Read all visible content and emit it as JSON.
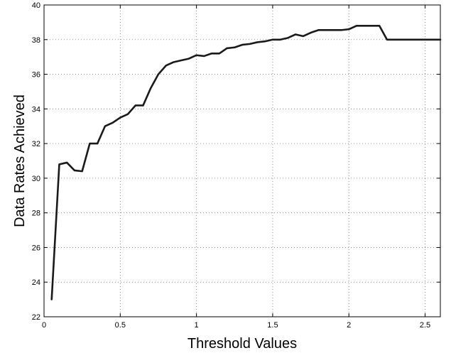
{
  "chart_data": {
    "type": "line",
    "xlabel": "Threshold Values",
    "ylabel": "Data Rates Achieved",
    "xlim": [
      0,
      2.6
    ],
    "ylim": [
      22,
      40
    ],
    "xticks": [
      0,
      0.5,
      1,
      1.5,
      2,
      2.5
    ],
    "xtick_labels": [
      "0",
      "0.5",
      "1",
      "1.5",
      "2",
      "2.5"
    ],
    "yticks": [
      22,
      24,
      26,
      28,
      30,
      32,
      34,
      36,
      38,
      40
    ],
    "ytick_labels": [
      "22",
      "24",
      "26",
      "28",
      "30",
      "32",
      "34",
      "36",
      "38",
      "40"
    ],
    "grid": true,
    "line_color": "#1a1a1a",
    "series": [
      {
        "x": [
          0.05,
          0.1,
          0.15,
          0.2,
          0.25,
          0.3,
          0.35,
          0.4,
          0.45,
          0.5,
          0.55,
          0.6,
          0.65,
          0.7,
          0.75,
          0.8,
          0.85,
          0.9,
          0.95,
          1.0,
          1.05,
          1.1,
          1.15,
          1.2,
          1.25,
          1.3,
          1.35,
          1.4,
          1.45,
          1.5,
          1.55,
          1.6,
          1.65,
          1.7,
          1.75,
          1.8,
          1.85,
          1.9,
          1.95,
          2.0,
          2.05,
          2.1,
          2.15,
          2.2,
          2.25,
          2.3,
          2.35,
          2.4,
          2.45,
          2.5,
          2.55,
          2.6
        ],
        "y": [
          23.0,
          30.8,
          30.9,
          30.45,
          30.4,
          32.0,
          32.0,
          33.0,
          33.2,
          33.5,
          33.7,
          34.2,
          34.2,
          35.2,
          36.0,
          36.5,
          36.7,
          36.8,
          36.9,
          37.1,
          37.05,
          37.2,
          37.2,
          37.5,
          37.55,
          37.7,
          37.75,
          37.85,
          37.9,
          38.0,
          38.0,
          38.1,
          38.3,
          38.2,
          38.4,
          38.55,
          38.55,
          38.55,
          38.55,
          38.6,
          38.8,
          38.8,
          38.8,
          38.8,
          38.0,
          38.0,
          38.0,
          38.0,
          38.0,
          38.0,
          38.0,
          38.0
        ]
      }
    ]
  }
}
